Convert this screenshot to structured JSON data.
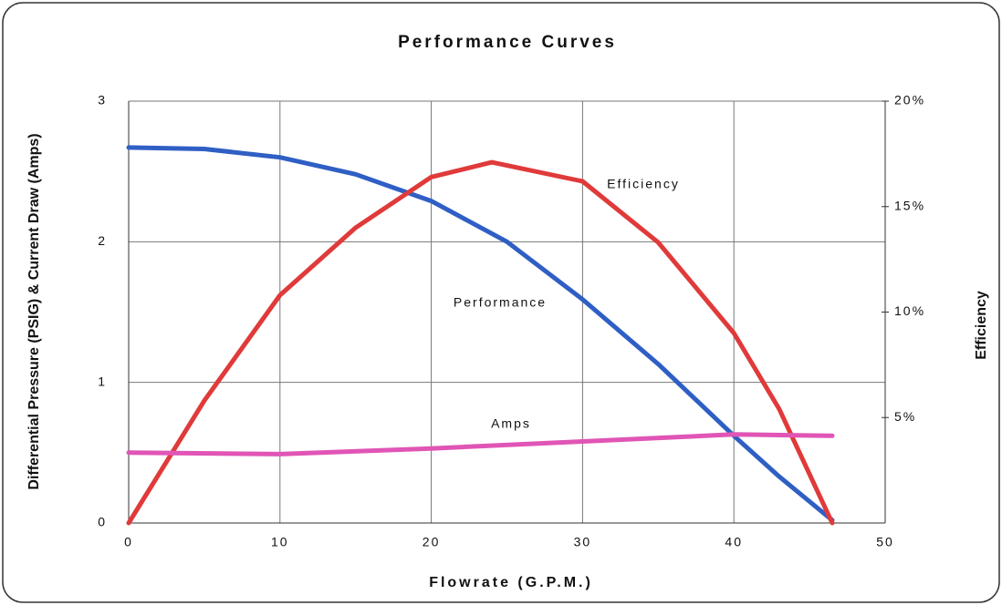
{
  "chart_data": {
    "type": "line",
    "title": "Performance Curves",
    "x_label": "Flowrate (G.P.M.)",
    "y_label": "Differential Pressure (PSIG) & Current Draw (Amps)",
    "y2_label": "Efficiency",
    "xlim": [
      0,
      50
    ],
    "xticks": [
      0,
      10,
      20,
      30,
      40,
      50
    ],
    "ylim": [
      0,
      3
    ],
    "yticks": [
      0,
      1,
      2,
      3
    ],
    "y2lim": [
      0,
      20
    ],
    "y2ticks": [
      {
        "value": 5,
        "label": "5%"
      },
      {
        "value": 10,
        "label": "10%"
      },
      {
        "value": 15,
        "label": "15%"
      },
      {
        "value": 20,
        "label": "20%"
      }
    ],
    "grid": true,
    "series": [
      {
        "name": "Performance",
        "color": "#2f5fc4",
        "x": [
          0,
          5,
          10,
          15,
          20,
          25,
          30,
          35,
          40,
          43,
          46.5
        ],
        "values": [
          2.67,
          2.66,
          2.6,
          2.48,
          2.29,
          2.0,
          1.59,
          1.13,
          0.62,
          0.33,
          0.02
        ]
      },
      {
        "name": "Efficiency",
        "color": "#e03a3a",
        "axis": "y2",
        "x": [
          0,
          5,
          10,
          15,
          20,
          24,
          30,
          35,
          40,
          43,
          46.5
        ],
        "values": [
          0,
          5.8,
          10.8,
          14.0,
          16.4,
          17.1,
          16.2,
          13.3,
          9.0,
          5.4,
          0
        ]
      },
      {
        "name": "Amps",
        "color": "#e055b5",
        "x": [
          0,
          10,
          20,
          30,
          40,
          46.5
        ],
        "values": [
          0.5,
          0.49,
          0.53,
          0.58,
          0.63,
          0.62
        ]
      }
    ]
  }
}
